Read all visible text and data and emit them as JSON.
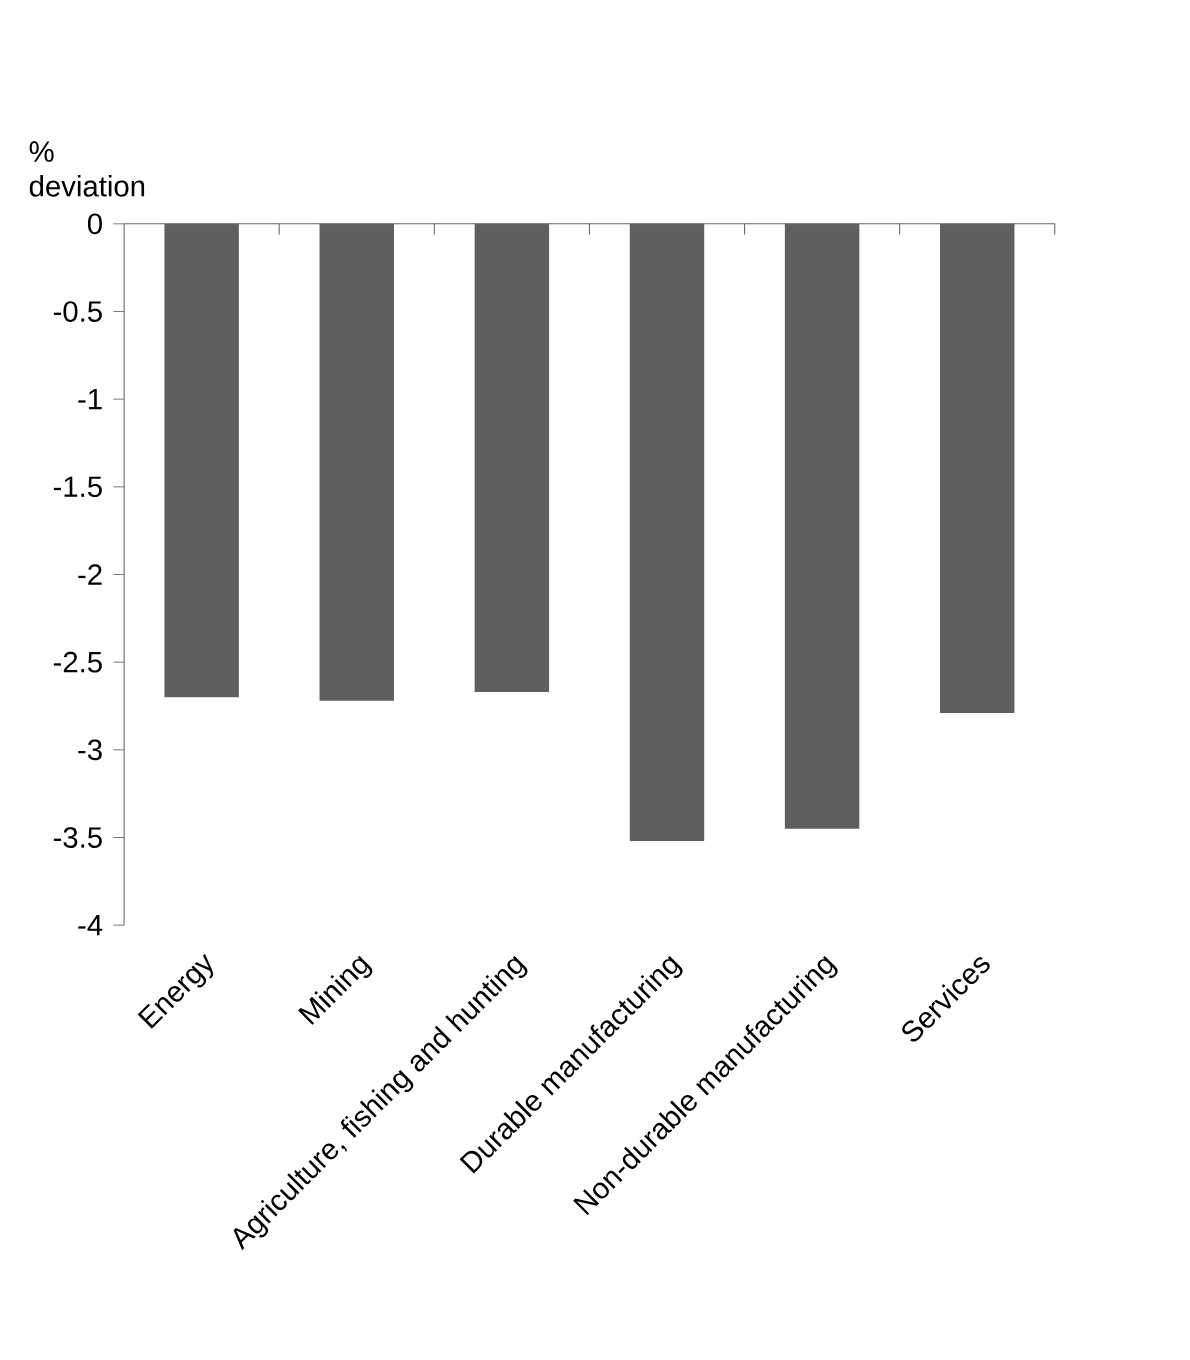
{
  "chart_data": {
    "type": "bar",
    "ylabel": "% deviation",
    "categories": [
      "Energy",
      "Mining",
      "Agriculture, fishing and hunting",
      "Durable manufacturing",
      "Non-durable manufacturing",
      "Services"
    ],
    "values": [
      -2.7,
      -2.72,
      -2.67,
      -3.52,
      -3.45,
      -2.79
    ],
    "color": "#5f5f5f",
    "ylim": [
      -4,
      0
    ],
    "yticks": [
      -4,
      -3.5,
      -3,
      -2.5,
      -2,
      -1.5,
      -1,
      -0.5,
      0
    ],
    "grid": false
  }
}
